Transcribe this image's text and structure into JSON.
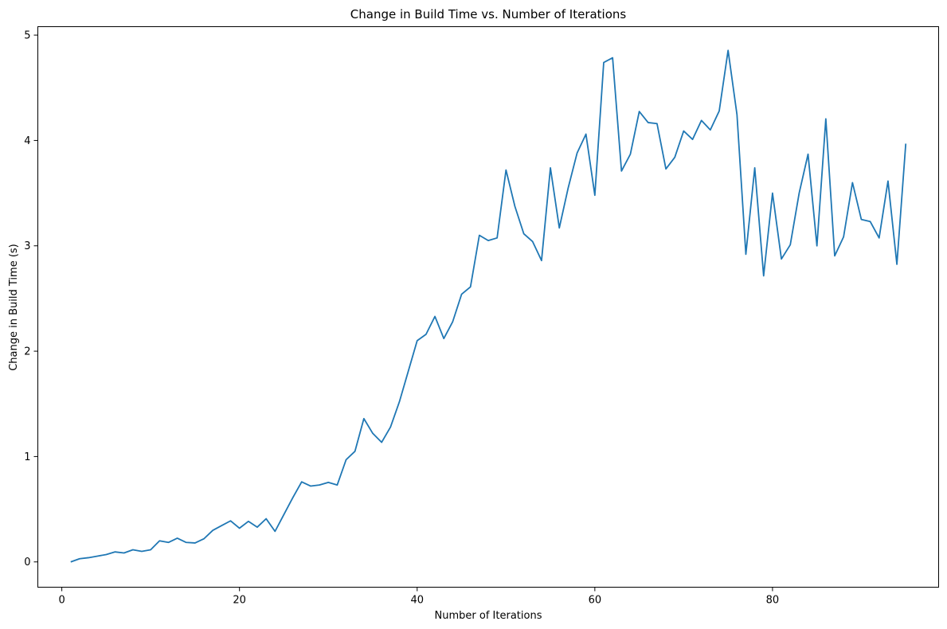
{
  "chart_data": {
    "type": "line",
    "title": "Change in Build Time vs. Number of Iterations",
    "xlabel": "Number of Iterations",
    "ylabel": "Change in Build Time (s)",
    "xlim": [
      -2.7,
      98.7
    ],
    "ylim": [
      -0.24,
      5.08
    ],
    "xticks": [
      0,
      20,
      40,
      60,
      80
    ],
    "yticks": [
      0,
      1,
      2,
      3,
      4,
      5
    ],
    "grid": false,
    "line_color": "#1f77b4",
    "series": [
      {
        "x": [
          1,
          2,
          3,
          4,
          5,
          6,
          7,
          8,
          9,
          10,
          11,
          12,
          13,
          14,
          15,
          16,
          17,
          18,
          19,
          20,
          21,
          22,
          23,
          24,
          25,
          26,
          27,
          28,
          29,
          30,
          31,
          32,
          33,
          34,
          35,
          36,
          37,
          38,
          39,
          40,
          41,
          42,
          43,
          44,
          45,
          46,
          47,
          48,
          49,
          50,
          51,
          52,
          53,
          54,
          55,
          56,
          57,
          58,
          59,
          60,
          61,
          62,
          63,
          64,
          65,
          66,
          67,
          68,
          69,
          70,
          71,
          72,
          73,
          74,
          75,
          76,
          77,
          78,
          79,
          80,
          81,
          82,
          83,
          84,
          85,
          86,
          87,
          88,
          89,
          90,
          91,
          92,
          93,
          94,
          95
        ],
        "y": [
          0.0,
          0.03,
          0.04,
          0.055,
          0.07,
          0.095,
          0.085,
          0.115,
          0.1,
          0.115,
          0.2,
          0.185,
          0.225,
          0.185,
          0.18,
          0.22,
          0.3,
          0.345,
          0.39,
          0.32,
          0.385,
          0.33,
          0.41,
          0.29,
          0.45,
          0.61,
          0.76,
          0.72,
          0.73,
          0.755,
          0.73,
          0.97,
          1.05,
          1.36,
          1.22,
          1.135,
          1.28,
          1.52,
          1.81,
          2.1,
          2.16,
          2.33,
          2.12,
          2.28,
          2.54,
          2.61,
          3.1,
          3.05,
          3.075,
          3.72,
          3.375,
          3.115,
          3.04,
          2.86,
          3.74,
          3.17,
          3.55,
          3.88,
          4.06,
          3.48,
          4.74,
          4.785,
          3.71,
          3.87,
          4.275,
          4.17,
          4.16,
          3.73,
          3.84,
          4.09,
          4.01,
          4.19,
          4.1,
          4.28,
          4.855,
          4.245,
          2.92,
          3.74,
          2.715,
          3.5,
          2.875,
          3.01,
          3.5,
          3.87,
          3.0,
          4.205,
          2.905,
          3.085,
          3.6,
          3.25,
          3.23,
          3.075,
          3.615,
          2.825,
          3.97
        ]
      }
    ]
  }
}
